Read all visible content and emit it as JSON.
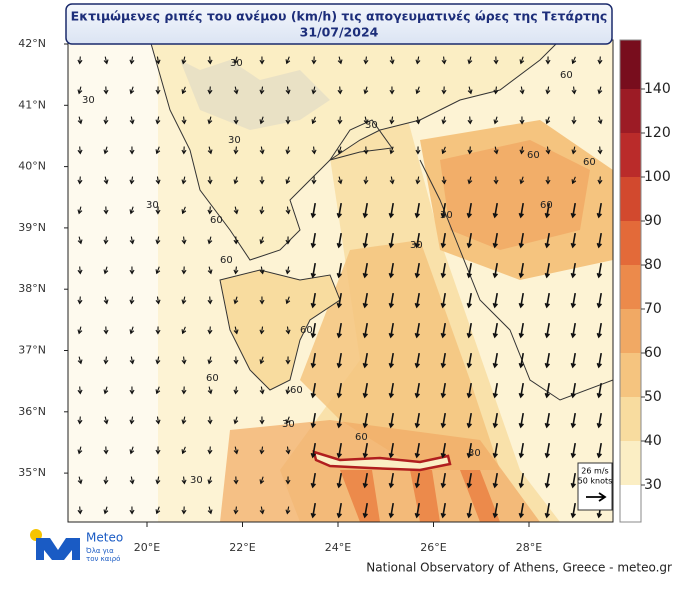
{
  "header": {
    "title_line1": "Εκτιμώμενες ριπές του ανέμου (km/h) τις απογευματινές ώρες της Τετάρτης",
    "title_line2": "31/07/2024"
  },
  "map": {
    "lat_ticks": [
      {
        "value": 42,
        "label": "42°N"
      },
      {
        "value": 41,
        "label": "41°N"
      },
      {
        "value": 40,
        "label": "40°N"
      },
      {
        "value": 39,
        "label": "39°N"
      },
      {
        "value": 38,
        "label": "38°N"
      },
      {
        "value": 37,
        "label": "37°N"
      },
      {
        "value": 36,
        "label": "36°N"
      },
      {
        "value": 35,
        "label": "35°N"
      }
    ],
    "lon_ticks": [
      {
        "value": 20,
        "label": "20°E"
      },
      {
        "value": 22,
        "label": "22°E"
      },
      {
        "value": 24,
        "label": "24°E"
      },
      {
        "value": 26,
        "label": "26°E"
      },
      {
        "value": 28,
        "label": "28°E"
      }
    ],
    "contour_labels": [
      "30",
      "30",
      "30",
      "30",
      "30",
      "60",
      "60",
      "60",
      "60",
      "60",
      "60",
      "60",
      "60",
      "30",
      "30",
      "30",
      "60",
      "60",
      "30",
      "30"
    ]
  },
  "colorbar": {
    "ticks": [
      30,
      40,
      50,
      60,
      70,
      80,
      90,
      100,
      120,
      140
    ],
    "colors": [
      "#ffffff",
      "#fbeec4",
      "#f8dc9f",
      "#f5c47f",
      "#f1a964",
      "#ec8a4b",
      "#e36a39",
      "#d2492e",
      "#ba2b2a",
      "#9c1b25",
      "#780d1d"
    ]
  },
  "arrow_legend": {
    "speed": "26 m/s",
    "knots": "50 knots"
  },
  "logo": {
    "name": "Meteo",
    "tagline1": "Όλα για",
    "tagline2": "τον καιρό"
  },
  "footer": {
    "credit": "National Observatory of Athens, Greece - meteo.gr"
  }
}
